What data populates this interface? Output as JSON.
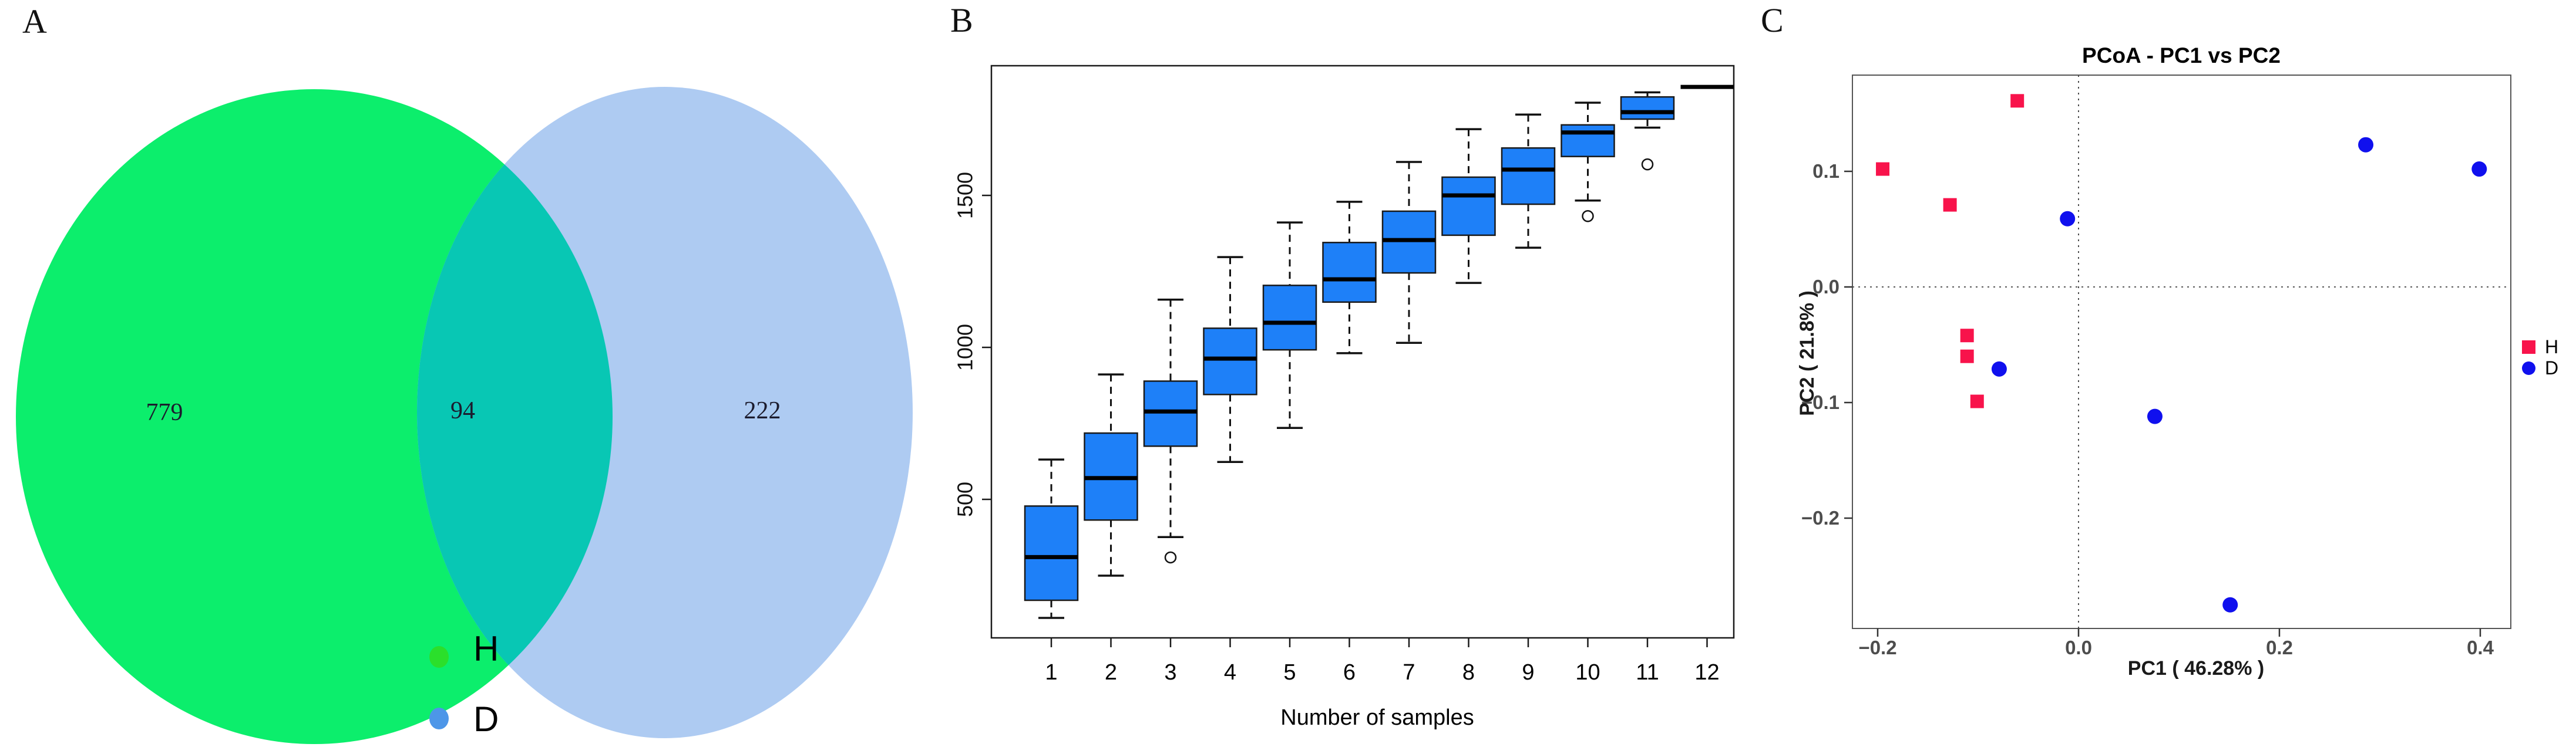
{
  "figure": {
    "background": "#ffffff",
    "panel_letters": {
      "a": "A",
      "b": "B",
      "c": "C"
    }
  },
  "chart_data": [
    {
      "panel": "A",
      "type": "venn",
      "sets": [
        {
          "name": "H",
          "unique_count": 779,
          "fill": "#0CEE6C"
        },
        {
          "name": "D",
          "unique_count": 222,
          "fill": "#AECBF2"
        }
      ],
      "overlap_count": 94,
      "overlap_fill": "#08C7B4",
      "labels": {
        "left": "779",
        "center": "94",
        "right": "222"
      },
      "legend": [
        {
          "label": "H",
          "color": "#2BDF2B",
          "shape": "circle"
        },
        {
          "label": "D",
          "color": "#4D96E8",
          "shape": "circle"
        }
      ]
    },
    {
      "panel": "B",
      "type": "boxplot",
      "title": "",
      "xlabel": "Number of samples",
      "ylabel": "",
      "categories": [
        "1",
        "2",
        "3",
        "4",
        "5",
        "6",
        "7",
        "8",
        "9",
        "10",
        "11",
        "12"
      ],
      "y_ticks": [
        500,
        1000,
        1500
      ],
      "ylim": [
        44,
        1927
      ],
      "box_fill": "#1E80F8",
      "box_stroke": "#1a1a1a",
      "boxes": [
        {
          "n": 1,
          "min": 110,
          "q1": 168,
          "median": 310,
          "q3": 478,
          "max": 631,
          "outliers": []
        },
        {
          "n": 2,
          "min": 249,
          "q1": 432,
          "median": 570,
          "q3": 718,
          "max": 911,
          "outliers": []
        },
        {
          "n": 3,
          "min": 376,
          "q1": 675,
          "median": 789,
          "q3": 889,
          "max": 1157,
          "outliers": [
            309
          ]
        },
        {
          "n": 4,
          "min": 623,
          "q1": 845,
          "median": 963,
          "q3": 1063,
          "max": 1297,
          "outliers": []
        },
        {
          "n": 5,
          "min": 735,
          "q1": 992,
          "median": 1081,
          "q3": 1204,
          "max": 1411,
          "outliers": []
        },
        {
          "n": 6,
          "min": 981,
          "q1": 1149,
          "median": 1224,
          "q3": 1345,
          "max": 1479,
          "outliers": []
        },
        {
          "n": 7,
          "min": 1015,
          "q1": 1245,
          "median": 1353,
          "q3": 1448,
          "max": 1610,
          "outliers": []
        },
        {
          "n": 8,
          "min": 1212,
          "q1": 1369,
          "median": 1500,
          "q3": 1560,
          "max": 1718,
          "outliers": []
        },
        {
          "n": 9,
          "min": 1328,
          "q1": 1471,
          "median": 1585,
          "q3": 1656,
          "max": 1766,
          "outliers": []
        },
        {
          "n": 10,
          "min": 1483,
          "q1": 1628,
          "median": 1707,
          "q3": 1732,
          "max": 1805,
          "outliers": [
            1432
          ]
        },
        {
          "n": 11,
          "min": 1723,
          "q1": 1751,
          "median": 1774,
          "q3": 1824,
          "max": 1839,
          "outliers": [
            1602
          ]
        },
        {
          "n": 12,
          "min": 1857,
          "q1": 1857,
          "median": 1857,
          "q3": 1857,
          "max": 1857,
          "outliers": []
        }
      ]
    },
    {
      "panel": "C",
      "type": "scatter",
      "title": "PCoA - PC1 vs PC2",
      "xlabel": "PC1 ( 46.28% )",
      "ylabel": "PC2 ( 21.8% )",
      "xlim": [
        -0.225,
        0.43
      ],
      "ylim": [
        -0.295,
        0.183
      ],
      "x_ticks": [
        -0.2,
        0.0,
        0.2,
        0.4
      ],
      "x_tick_labels": [
        "−0.2",
        "0.0",
        "0.2",
        "0.4"
      ],
      "y_ticks": [
        -0.2,
        -0.1,
        0.0,
        0.1
      ],
      "y_tick_labels": [
        "−0.2",
        "−0.1",
        "0.0",
        "0.1"
      ],
      "zero_lines": "dotted",
      "tick_label_color": "#4d4d4d",
      "series": [
        {
          "name": "H",
          "marker": "square",
          "color": "#F8134B",
          "points": [
            [
              -0.061,
              0.161
            ],
            [
              -0.195,
              0.102
            ],
            [
              -0.128,
              0.071
            ],
            [
              -0.111,
              -0.042
            ],
            [
              -0.111,
              -0.06
            ],
            [
              -0.101,
              -0.099
            ]
          ]
        },
        {
          "name": "D",
          "marker": "circle",
          "color": "#1010EE",
          "points": [
            [
              -0.011,
              0.059
            ],
            [
              0.286,
              0.123
            ],
            [
              0.399,
              0.102
            ],
            [
              -0.079,
              -0.071
            ],
            [
              0.076,
              -0.112
            ],
            [
              0.151,
              -0.275
            ]
          ]
        }
      ],
      "legend": [
        {
          "label": "H",
          "color": "#F8134B",
          "shape": "square"
        },
        {
          "label": "D",
          "color": "#1010EE",
          "shape": "circle"
        }
      ]
    }
  ]
}
